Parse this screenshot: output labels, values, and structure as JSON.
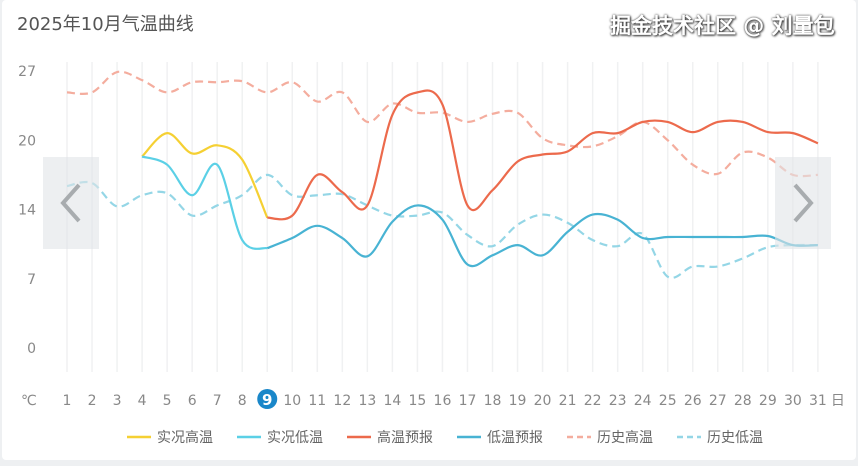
{
  "title": "2025年10月气温曲线",
  "watermark": "掘金技术社区 @ 刘量包",
  "chart_data": {
    "type": "line",
    "title": "2025年10月气温曲线",
    "y_unit": "℃",
    "x_unit": "日",
    "highlight_day": 9,
    "ylim": [
      0,
      27.2
    ],
    "yticks": [
      0,
      6.8,
      13.6,
      20.4,
      27.2
    ],
    "ytick_labels": [
      "0",
      "7",
      "14",
      "20",
      "27"
    ],
    "x": [
      1,
      2,
      3,
      4,
      5,
      6,
      7,
      8,
      9,
      10,
      11,
      12,
      13,
      14,
      15,
      16,
      17,
      18,
      19,
      20,
      21,
      22,
      23,
      24,
      25,
      26,
      27,
      28,
      29,
      30,
      31
    ],
    "grid": "vertical",
    "legend_position": "bottom-right",
    "series": [
      {
        "name": "实况高温",
        "color": "#f5d033",
        "dash": false,
        "x": [
          4,
          5,
          6,
          7,
          8,
          9
        ],
        "values": [
          18.8,
          21.1,
          19.1,
          19.9,
          18.5,
          12.8
        ]
      },
      {
        "name": "实况低温",
        "color": "#5bd0e6",
        "dash": false,
        "x": [
          4,
          5,
          6,
          7,
          8,
          9
        ],
        "values": [
          18.8,
          18.0,
          15.0,
          18.0,
          10.6,
          9.8
        ]
      },
      {
        "name": "高温预报",
        "color": "#ec6a4c",
        "dash": false,
        "x": [
          9,
          10,
          11,
          12,
          13,
          14,
          15,
          16,
          17,
          18,
          19,
          20,
          21,
          22,
          23,
          24,
          25,
          26,
          27,
          28,
          29,
          30,
          31
        ],
        "values": [
          12.8,
          13.0,
          17.0,
          15.3,
          14.0,
          22.9,
          25.1,
          23.9,
          14.0,
          15.5,
          18.3,
          19.0,
          19.3,
          21.1,
          21.1,
          22.2,
          22.2,
          21.2,
          22.2,
          22.2,
          21.2,
          21.1,
          20.1
        ]
      },
      {
        "name": "低温预报",
        "color": "#48b3d3",
        "dash": false,
        "x": [
          9,
          10,
          11,
          12,
          13,
          14,
          15,
          16,
          17,
          18,
          19,
          20,
          21,
          22,
          23,
          24,
          25,
          26,
          27,
          28,
          29,
          30,
          31
        ],
        "values": [
          9.8,
          10.8,
          12.0,
          10.8,
          9.0,
          12.4,
          14.0,
          12.6,
          8.2,
          9.1,
          10.1,
          9.1,
          11.4,
          13.1,
          12.6,
          10.8,
          10.9,
          10.9,
          10.9,
          10.9,
          11.0,
          10.1,
          10.1
        ]
      },
      {
        "name": "历史高温",
        "color": "#f4ad9e",
        "dash": true,
        "x": [
          1,
          2,
          3,
          4,
          5,
          6,
          7,
          8,
          9,
          10,
          11,
          12,
          13,
          14,
          15,
          16,
          17,
          18,
          19,
          20,
          21,
          22,
          23,
          24,
          25,
          26,
          27,
          28,
          29,
          30,
          31
        ],
        "values": [
          25.1,
          25.1,
          27.1,
          26.3,
          25.1,
          26.1,
          26.1,
          26.2,
          25.1,
          26.1,
          24.2,
          25.1,
          22.2,
          24.0,
          23.1,
          23.1,
          22.2,
          23.0,
          23.1,
          20.6,
          19.9,
          19.8,
          20.8,
          22.2,
          20.4,
          18.0,
          17.1,
          19.2,
          18.7,
          17.0,
          17.0
        ]
      },
      {
        "name": "历史低温",
        "color": "#94d6e6",
        "dash": true,
        "x": [
          1,
          2,
          3,
          4,
          5,
          6,
          7,
          8,
          9,
          10,
          11,
          12,
          13,
          14,
          15,
          16,
          17,
          18,
          19,
          20,
          21,
          22,
          23,
          24,
          25,
          26,
          27,
          28,
          29,
          30,
          31
        ],
        "values": [
          15.9,
          16.2,
          13.9,
          15.0,
          15.2,
          13.0,
          14.0,
          15.0,
          17.0,
          15.0,
          15.0,
          15.1,
          14.0,
          13.0,
          13.0,
          13.3,
          11.1,
          10.0,
          12.1,
          13.1,
          12.3,
          10.6,
          10.0,
          11.2,
          7.0,
          8.0,
          8.0,
          8.8,
          9.9,
          10.1,
          10.1
        ]
      }
    ]
  },
  "nav": {
    "prev_icon": "chevron-left-icon",
    "next_icon": "chevron-right-icon"
  }
}
